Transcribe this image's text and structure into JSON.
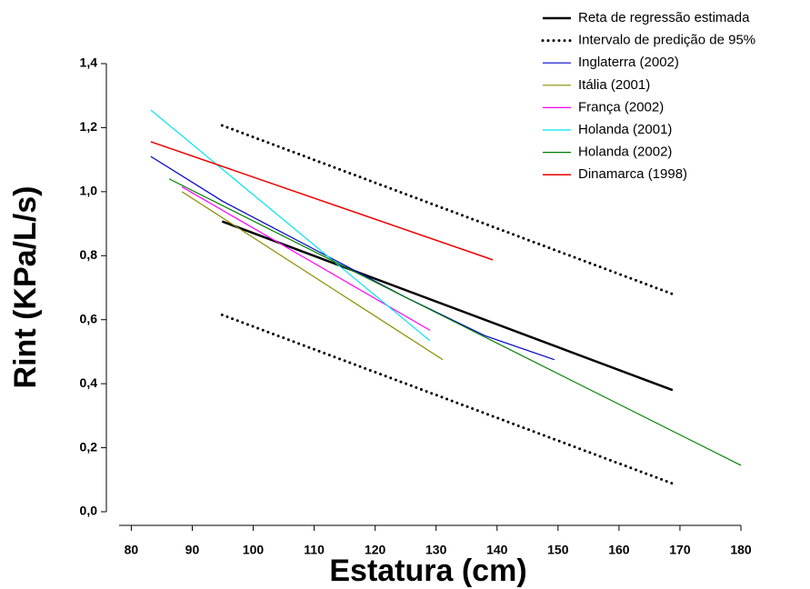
{
  "chart_data": {
    "type": "line",
    "xlabel": "Estatura (cm)",
    "ylabel": "Rint (KPa/L/s)",
    "xlim": [
      78,
      180
    ],
    "ylim": [
      0,
      1.4
    ],
    "xticks": [
      80,
      90,
      100,
      110,
      120,
      130,
      140,
      150,
      160,
      170,
      180
    ],
    "yticks": [
      {
        "value": 0,
        "label": "0,0"
      },
      {
        "value": 0.2,
        "label": "0,2"
      },
      {
        "value": 0.4,
        "label": "0,4"
      },
      {
        "value": 0.6,
        "label": "0,6"
      },
      {
        "value": 0.8,
        "label": "0,8"
      },
      {
        "value": 1.0,
        "label": "1,0"
      },
      {
        "value": 1.2,
        "label": "1,2"
      },
      {
        "value": 1.4,
        "label": "1,4"
      }
    ],
    "series": [
      {
        "name": "Reta de regressão estimada",
        "color": "#000000",
        "width": 2.5,
        "x": [
          94.9,
          168.8
        ],
        "values": [
          0.907,
          0.38
        ]
      },
      {
        "name": "Intervalo de predição de 95%",
        "color": "#000000",
        "width": 3,
        "dash": "dotted",
        "x": [
          94.9,
          168.8,
          null,
          94.9,
          168.8
        ],
        "values": [
          1.207,
          0.68,
          null,
          0.615,
          0.088
        ]
      },
      {
        "name": "Inglaterra (2002)",
        "color": "#0000cc",
        "width": 1.2,
        "x": [
          83.2,
          95,
          110,
          125,
          138,
          149.4
        ],
        "values": [
          1.11,
          0.97,
          0.82,
          0.67,
          0.55,
          0.475
        ]
      },
      {
        "name": "Itália (2001)",
        "color": "#8b8b00",
        "width": 1.2,
        "x": [
          88.3,
          131.1
        ],
        "values": [
          1.0,
          0.475
        ]
      },
      {
        "name": "França (2002)",
        "color": "#ff00ff",
        "width": 1.2,
        "x": [
          88.3,
          129
        ],
        "values": [
          1.015,
          0.567
        ]
      },
      {
        "name": "Holanda (2001)",
        "color": "#00e5ee",
        "width": 1.2,
        "x": [
          83.2,
          129
        ],
        "values": [
          1.255,
          0.534
        ]
      },
      {
        "name": "Holanda (2002)",
        "color": "#008000",
        "width": 1.2,
        "x": [
          86.2,
          180
        ],
        "values": [
          1.04,
          0.145
        ]
      },
      {
        "name": "Dinamarca (1998)",
        "color": "#ee0000",
        "width": 1.5,
        "x": [
          83.2,
          139.3
        ],
        "values": [
          1.156,
          0.787
        ]
      }
    ]
  }
}
